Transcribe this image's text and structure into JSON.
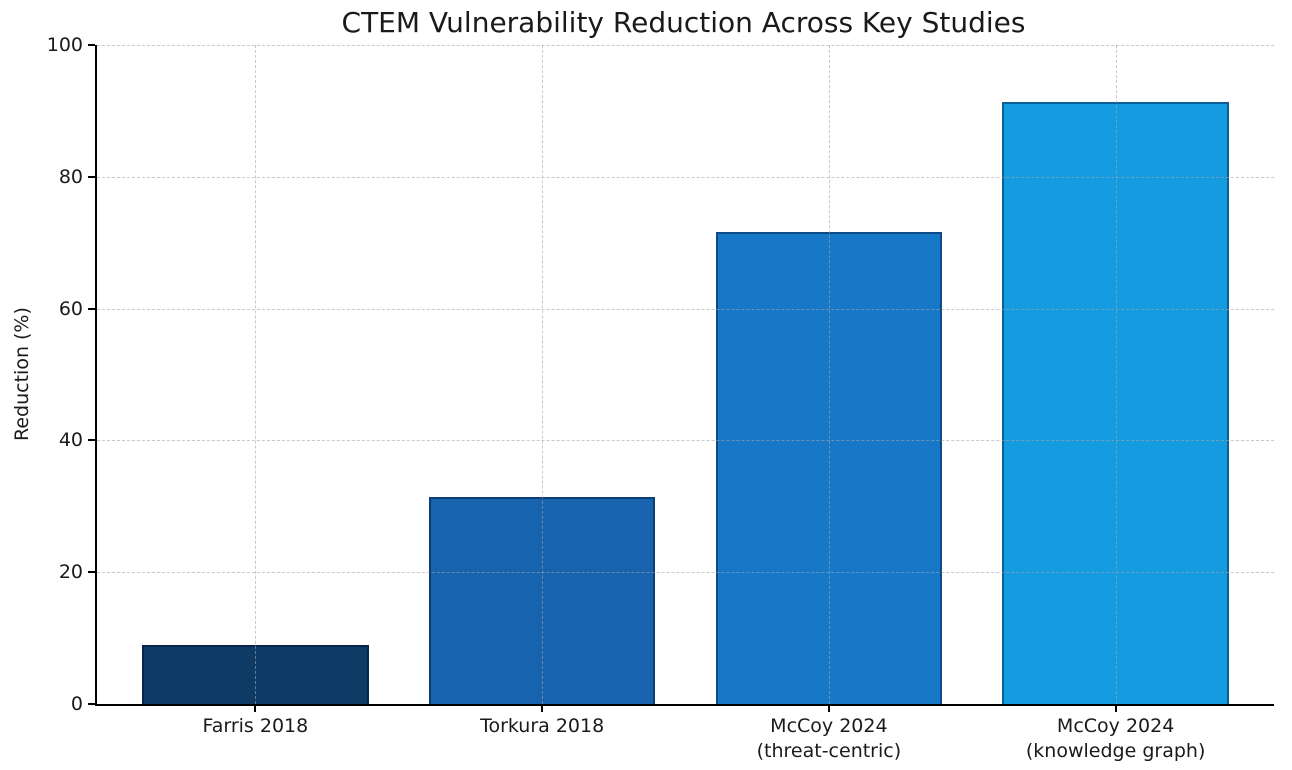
{
  "chart_data": {
    "type": "bar",
    "title": "CTEM Vulnerability Reduction Across Key Studies",
    "xlabel": "",
    "ylabel": "Reduction (%)",
    "categories": [
      "Farris 2018",
      "Torkura 2018",
      "McCoy 2024\n(threat-centric)",
      "McCoy 2024\n(knowledge graph)"
    ],
    "values": [
      9.0,
      31.4,
      71.6,
      91.3
    ],
    "bar_colors": [
      "#0d3b66",
      "#1763ae",
      "#1878c8",
      "#159ce0"
    ],
    "ylim": [
      0,
      100
    ],
    "yticks": [
      0,
      20,
      40,
      60,
      80,
      100
    ],
    "grid": "dashed-gray-over-bars",
    "grid_color": "#a5a5a5",
    "axis_color": "#000000",
    "background_color": "#ffffff",
    "legend": "none"
  }
}
